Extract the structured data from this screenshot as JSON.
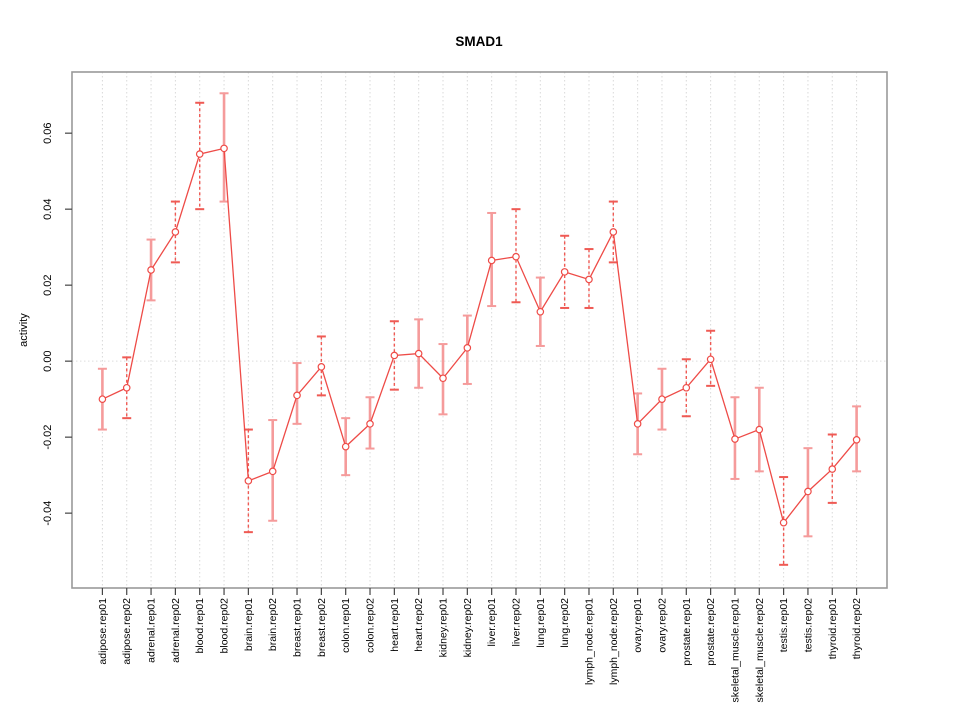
{
  "page": {
    "background_color": "#ffffff"
  },
  "chart_data": {
    "type": "line",
    "title": "SMAD1",
    "xlabel": "",
    "ylabel": "activity",
    "legend": "none",
    "grid": "vertical dotted gridline at each category; horizontal dotted line at y=0",
    "point_marker": "open-circle",
    "error_bars": true,
    "ylim": [
      -0.0597,
      0.0761
    ],
    "yticks": [
      -0.04,
      -0.02,
      0.0,
      0.02,
      0.04,
      0.06
    ],
    "ytick_labels": [
      "-0.04",
      "-0.02",
      "0.00",
      "0.02",
      "0.04",
      "0.06"
    ],
    "categories": [
      "adipose.rep01",
      "adipose.rep02",
      "adrenal.rep01",
      "adrenal.rep02",
      "blood.rep01",
      "blood.rep02",
      "brain.rep01",
      "brain.rep02",
      "breast.rep01",
      "breast.rep02",
      "colon.rep01",
      "colon.rep02",
      "heart.rep01",
      "heart.rep02",
      "kidney.rep01",
      "kidney.rep02",
      "liver.rep01",
      "liver.rep02",
      "lung.rep01",
      "lung.rep02",
      "lymph_node.rep01",
      "lymph_node.rep02",
      "ovary.rep01",
      "ovary.rep02",
      "prostate.rep01",
      "prostate.rep02",
      "skeletal_muscle.rep01",
      "skeletal_muscle.rep02",
      "testis.rep01",
      "testis.rep02",
      "thyroid.rep01",
      "thyroid.rep02"
    ],
    "series": [
      {
        "name": "SMAD1 activity",
        "values": [
          -0.01,
          -0.007,
          0.024,
          0.034,
          0.0545,
          0.056,
          -0.0315,
          -0.029,
          -0.009,
          -0.0015,
          -0.0225,
          -0.0165,
          0.0015,
          0.002,
          -0.0045,
          0.0035,
          0.0265,
          0.0275,
          0.013,
          0.0235,
          0.0215,
          0.034,
          -0.0165,
          -0.01,
          -0.007,
          0.0005,
          -0.0205,
          -0.018,
          -0.0425,
          -0.0343,
          -0.0284,
          -0.0207
        ],
        "ci_low": [
          -0.018,
          -0.015,
          0.016,
          0.026,
          0.04,
          0.042,
          -0.045,
          -0.042,
          -0.0165,
          -0.009,
          -0.03,
          -0.023,
          -0.0075,
          -0.007,
          -0.014,
          -0.006,
          0.0145,
          0.0155,
          0.004,
          0.014,
          0.014,
          0.026,
          -0.0245,
          -0.018,
          -0.0145,
          -0.0065,
          -0.031,
          -0.029,
          -0.0536,
          -0.0461,
          -0.0373,
          -0.029
        ],
        "ci_high": [
          -0.002,
          0.001,
          0.032,
          0.042,
          0.068,
          0.0705,
          -0.018,
          -0.0155,
          -0.0005,
          0.0065,
          -0.015,
          -0.0095,
          0.0105,
          0.011,
          0.0045,
          0.012,
          0.039,
          0.04,
          0.022,
          0.033,
          0.0295,
          0.042,
          -0.0085,
          -0.002,
          0.0005,
          0.008,
          -0.0095,
          -0.007,
          -0.0305,
          -0.0229,
          -0.0193,
          -0.0119
        ],
        "bar_styles": [
          "solid",
          "dashed",
          "solid",
          "dashed",
          "dashed",
          "solid",
          "dashed",
          "solid",
          "solid",
          "dashed",
          "solid",
          "solid",
          "dashed",
          "solid",
          "solid",
          "solid",
          "solid",
          "dashed",
          "solid",
          "dashed",
          "dashed",
          "dashed",
          "solid",
          "solid",
          "dashed",
          "dashed",
          "solid",
          "solid",
          "dashed",
          "solid",
          "dashed",
          "solid"
        ]
      }
    ],
    "colors": {
      "line": "#ee4b47",
      "point_stroke": "#ee4b47",
      "error_bar_solid": "#f59b9b",
      "error_bar_dashed": "#ef5a54",
      "gridline": "#d9d9d9",
      "zero_line": "#dedede",
      "plot_border": "#999999",
      "axis_tick": "#444444",
      "text": "#000000"
    }
  }
}
